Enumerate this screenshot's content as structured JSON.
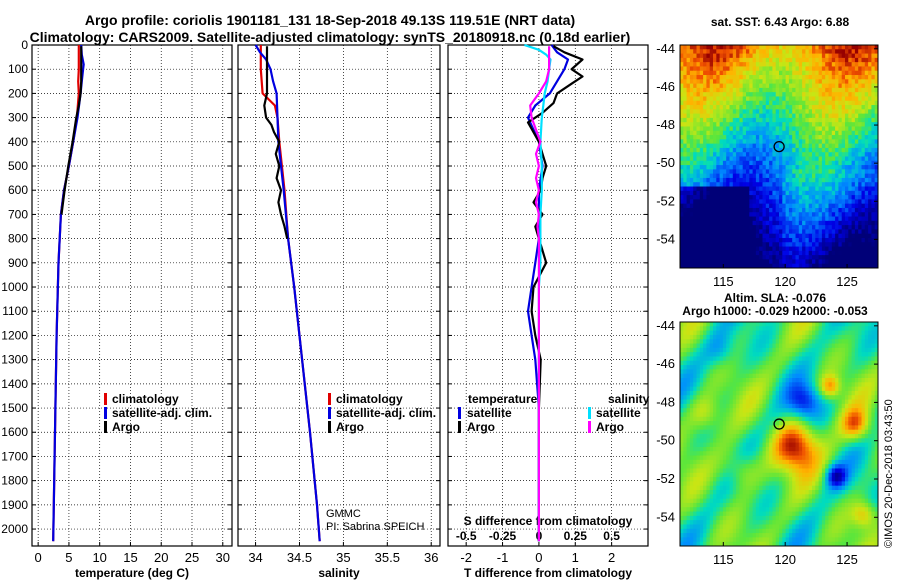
{
  "header": {
    "line1": "Argo profile: coriolis 1901181_131 18-Sep-2018 49.13S 119.51E (NRT data)",
    "line2": "Climatology: CARS2009. Satellite-adjusted climatology: synTS_20180918.nc (0.18d earlier)"
  },
  "colors": {
    "climatology": "#e00000",
    "satellite": "#0000e0",
    "argo": "#000000",
    "satellite_s": "#00e0ff",
    "argo_s": "#ff00ff"
  },
  "depth_axis": {
    "ticks": [
      0,
      100,
      200,
      300,
      400,
      500,
      600,
      700,
      800,
      900,
      1000,
      1100,
      1200,
      1300,
      1400,
      1500,
      1600,
      1700,
      1800,
      1900,
      2000
    ],
    "ylim": [
      0,
      2070
    ]
  },
  "legend": {
    "climatology": "climatology",
    "satellite_adj": "satellite-adj. clim.",
    "argo": "Argo",
    "temperature_heading": "temperature",
    "salinity_heading": "salinity",
    "satellite": "satellite"
  },
  "credits": {
    "org": "GMMC",
    "pi": "PI: Sabrina SPEICH",
    "imos": "©IMOS 20-Dec-2018 03:43:50"
  },
  "chart_data": [
    {
      "type": "line",
      "id": "temperature",
      "xlabel": "temperature (deg C)",
      "xlim": [
        -1,
        31.5
      ],
      "xticks": [
        0,
        5,
        10,
        15,
        20,
        25,
        30
      ],
      "xtick_labels": [
        "0",
        "5",
        "10",
        "15",
        "20",
        "25",
        "30"
      ],
      "series": [
        {
          "name": "climatology",
          "color_key": "climatology",
          "depth": [
            0,
            50,
            100,
            150,
            200,
            300,
            400,
            500,
            600,
            700,
            900,
            1200,
            1500,
            1800,
            2050
          ],
          "values": [
            6.6,
            6.6,
            6.6,
            6.5,
            6.6,
            6.3,
            5.7,
            5.0,
            4.2,
            3.7,
            3.3,
            3.0,
            2.8,
            2.6,
            2.45
          ]
        },
        {
          "name": "satellite-adj. clim.",
          "color_key": "satellite",
          "depth": [
            0,
            40,
            80,
            100,
            150,
            200,
            300,
            400,
            500,
            600,
            700,
            900,
            1200,
            1500,
            1800,
            2050
          ],
          "values": [
            7.0,
            7.1,
            7.4,
            7.3,
            7.1,
            6.9,
            6.4,
            5.7,
            5.0,
            4.2,
            3.7,
            3.3,
            3.0,
            2.8,
            2.6,
            2.45
          ]
        },
        {
          "name": "Argo",
          "color_key": "argo",
          "depth": [
            5,
            60,
            100,
            150,
            200,
            250,
            300,
            400,
            500,
            600,
            700
          ],
          "values": [
            7.0,
            7.0,
            7.0,
            7.0,
            6.9,
            6.6,
            6.2,
            5.6,
            4.9,
            4.3,
            3.8
          ]
        }
      ]
    },
    {
      "type": "line",
      "id": "salinity",
      "xlabel": "salinity",
      "xlim": [
        33.8,
        36.1
      ],
      "xticks": [
        34,
        34.5,
        35,
        35.5,
        36
      ],
      "xtick_labels": [
        "34",
        "34.5",
        "35",
        "35.5",
        "36"
      ],
      "series": [
        {
          "name": "climatology",
          "color_key": "climatology",
          "depth": [
            0,
            60,
            100,
            200,
            250,
            300,
            400,
            500,
            600,
            800,
            1000,
            1300,
            1600,
            1900,
            2050
          ],
          "values": [
            34.06,
            34.06,
            34.06,
            34.08,
            34.22,
            34.25,
            34.27,
            34.3,
            34.33,
            34.37,
            34.44,
            34.53,
            34.62,
            34.7,
            34.73
          ]
        },
        {
          "name": "satellite-adj. clim.",
          "color_key": "satellite",
          "depth": [
            0,
            30,
            60,
            100,
            150,
            200,
            300,
            400,
            500,
            600,
            800,
            1000,
            1300,
            1600,
            1900,
            2050
          ],
          "values": [
            34.0,
            34.05,
            34.12,
            34.17,
            34.2,
            34.24,
            34.25,
            34.26,
            34.29,
            34.32,
            34.37,
            34.44,
            34.53,
            34.62,
            34.7,
            34.73
          ]
        },
        {
          "name": "Argo",
          "color_key": "argo",
          "depth": [
            5,
            100,
            200,
            250,
            300,
            330,
            360,
            400,
            450,
            500,
            550,
            600,
            650,
            700,
            750,
            800
          ],
          "values": [
            34.13,
            34.13,
            34.13,
            34.1,
            34.12,
            34.18,
            34.21,
            34.27,
            34.23,
            34.27,
            34.24,
            34.29,
            34.26,
            34.29,
            34.33,
            34.36
          ]
        }
      ]
    },
    {
      "type": "line",
      "id": "differences",
      "xlabel": "T difference from climatology",
      "xlim": [
        -2.5,
        3.0
      ],
      "xticks": [
        -2,
        -1,
        0,
        1,
        2
      ],
      "xtick_labels": [
        "-2",
        "-1",
        "0",
        "1",
        "2"
      ],
      "top_label": "S difference from climatology",
      "top_ticks": [
        -0.5,
        -0.25,
        0,
        0.25,
        0.5
      ],
      "top_tick_labels": [
        "-0.5",
        "-0.25",
        "0",
        "0.25",
        "0.5"
      ],
      "top_xlim": [
        -0.625,
        0.75
      ],
      "series": [
        {
          "name": "temperature satellite",
          "color_key": "satellite",
          "axis": "T",
          "depth": [
            0,
            30,
            60,
            100,
            150,
            200,
            250,
            300,
            400,
            500,
            600,
            700,
            800,
            900,
            1000,
            1100,
            1200,
            1300,
            1500,
            1800,
            2050
          ],
          "values": [
            0.35,
            0.5,
            0.8,
            0.7,
            0.5,
            0.3,
            -0.1,
            -0.3,
            0,
            0.1,
            0,
            0,
            0,
            -0.1,
            -0.2,
            -0.3,
            -0.2,
            -0.1,
            0,
            0,
            0
          ]
        },
        {
          "name": "temperature Argo",
          "color_key": "argo",
          "axis": "T",
          "depth": [
            5,
            30,
            60,
            100,
            130,
            160,
            200,
            240,
            280,
            320,
            400,
            450,
            500,
            550,
            600,
            650,
            700,
            750,
            800,
            900,
            1000,
            1100,
            1200,
            1300,
            1500,
            1800,
            2050
          ],
          "values": [
            0.4,
            0.7,
            1.2,
            0.9,
            1.2,
            0.9,
            0.5,
            0.4,
            0.1,
            -0.3,
            0,
            0.1,
            0.2,
            0.1,
            0.05,
            -0.15,
            0.1,
            -0.1,
            0,
            0.2,
            -0.15,
            -0.2,
            -0.1,
            0.05,
            0,
            0,
            0
          ]
        },
        {
          "name": "salinity satellite",
          "color_key": "satellite_s",
          "axis": "S",
          "depth": [
            0,
            20,
            40,
            60,
            100,
            150,
            200,
            250,
            300,
            400,
            500,
            600,
            700,
            800,
            900,
            1000,
            1200,
            1500,
            1800,
            2050
          ],
          "values": [
            -0.1,
            0,
            0.05,
            0.08,
            0.07,
            0.06,
            0.04,
            0.03,
            0.02,
            0.01,
            0.02,
            0.02,
            0.01,
            0.01,
            0.01,
            0,
            0,
            0,
            0,
            0
          ]
        },
        {
          "name": "salinity Argo",
          "color_key": "argo_s",
          "axis": "S",
          "depth": [
            5,
            100,
            150,
            200,
            250,
            300,
            350,
            400,
            450,
            500,
            550,
            600,
            650,
            700,
            750,
            800,
            850,
            900,
            1000,
            1200,
            1500,
            1800,
            2050
          ],
          "values": [
            0.07,
            0.07,
            0.05,
            0.0,
            -0.06,
            -0.05,
            -0.02,
            0.01,
            -0.02,
            0.0,
            -0.02,
            0.0,
            -0.02,
            0.0,
            -0.01,
            0.0,
            0.0,
            0.0,
            0.0,
            0.0,
            0.0,
            0.0,
            0.0
          ]
        }
      ]
    },
    {
      "type": "heatmap",
      "id": "sst_map",
      "title": "sat. SST: 6.43 Argo: 6.88",
      "xticks": [
        115,
        120,
        125
      ],
      "xtick_labels": [
        "115",
        "120",
        "125"
      ],
      "yticks": [
        -44,
        -46,
        -48,
        -50,
        -52,
        -54
      ],
      "ytick_labels": [
        "-44",
        "-46",
        "-48",
        "-50",
        "-52",
        "-54"
      ],
      "xlim": [
        111.5,
        127.5
      ],
      "ylim": [
        -55.5,
        -43.8
      ],
      "marker": {
        "lon": 119.51,
        "lat": -49.13
      }
    },
    {
      "type": "heatmap",
      "id": "sla_map",
      "title_line1": "Altim. SLA: -0.076",
      "title_line2": "Argo h1000: -0.029 h2000: -0.053",
      "xticks": [
        115,
        120,
        125
      ],
      "xtick_labels": [
        "115",
        "120",
        "125"
      ],
      "yticks": [
        -44,
        -46,
        -48,
        -50,
        -52,
        -54
      ],
      "ytick_labels": [
        "-44",
        "-46",
        "-48",
        "-50",
        "-52",
        "-54"
      ],
      "xlim": [
        111.5,
        127.5
      ],
      "ylim": [
        -55.5,
        -43.8
      ],
      "marker": {
        "lon": 119.51,
        "lat": -49.13
      }
    }
  ]
}
